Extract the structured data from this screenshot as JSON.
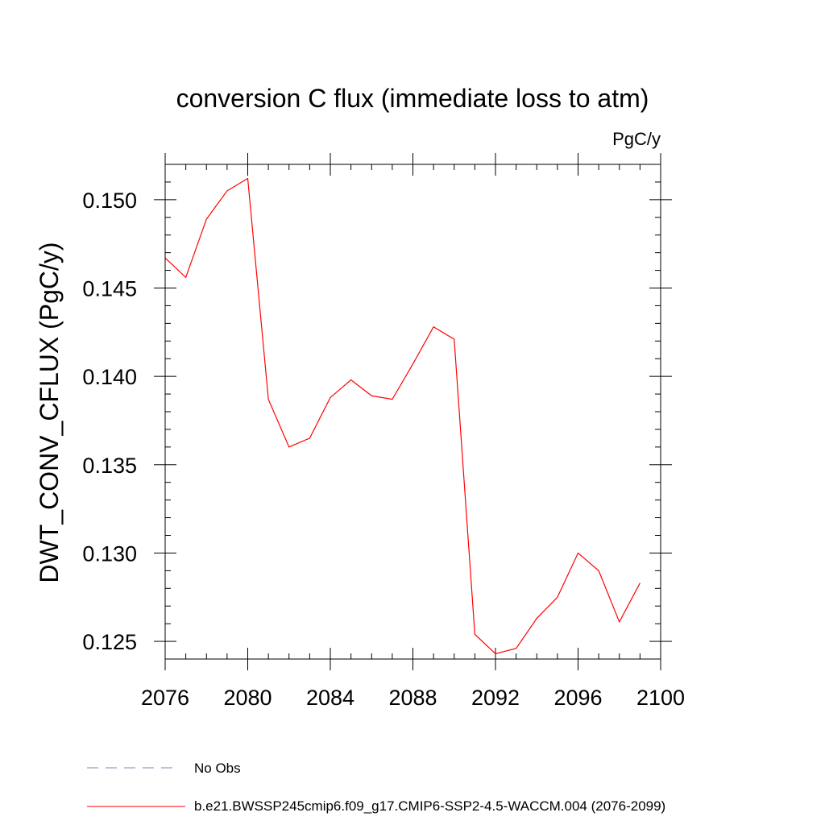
{
  "chart_data": {
    "type": "line",
    "title": "conversion C flux (immediate loss to atm)",
    "units": "PgC/y",
    "ylabel": "DWT_CONV_CFLUX  (PgC/y)",
    "xlabel": "",
    "xlim": [
      2076,
      2100
    ],
    "ylim": [
      0.124,
      0.152
    ],
    "x_ticks": [
      2076,
      2080,
      2084,
      2088,
      2092,
      2096,
      2100
    ],
    "x_tick_labels": [
      "2076",
      "2080",
      "2084",
      "2088",
      "2092",
      "2096",
      "2100"
    ],
    "y_ticks": [
      0.125,
      0.13,
      0.135,
      0.14,
      0.145,
      0.15
    ],
    "y_tick_labels": [
      "0.125",
      "0.130",
      "0.135",
      "0.140",
      "0.145",
      "0.150"
    ],
    "grid": false,
    "legend_position": "bottom",
    "series": [
      {
        "name": "b.e21.BWSSP245cmip6.f09_g17.CMIP6-SSP2-4.5-WACCM.004 (2076-2099)",
        "color": "#ff0000",
        "style": "solid",
        "x": [
          2076,
          2077,
          2078,
          2079,
          2080,
          2081,
          2082,
          2083,
          2084,
          2085,
          2086,
          2087,
          2088,
          2089,
          2090,
          2091,
          2092,
          2093,
          2094,
          2095,
          2096,
          2097,
          2098,
          2099
        ],
        "y": [
          0.1467,
          0.1456,
          0.1489,
          0.1505,
          0.1512,
          0.1387,
          0.136,
          0.1365,
          0.1388,
          0.1398,
          0.1389,
          0.1387,
          0.1407,
          0.1428,
          0.1421,
          0.1254,
          0.1243,
          0.1246,
          0.1263,
          0.1275,
          0.13,
          0.129,
          0.1261,
          0.1283
        ]
      }
    ],
    "legend": [
      {
        "label": "No Obs",
        "color": "#8080b0",
        "style": "dashed"
      },
      {
        "label": "b.e21.BWSSP245cmip6.f09_g17.CMIP6-SSP2-4.5-WACCM.004 (2076-2099)",
        "color": "#ff0000",
        "style": "solid"
      }
    ]
  }
}
